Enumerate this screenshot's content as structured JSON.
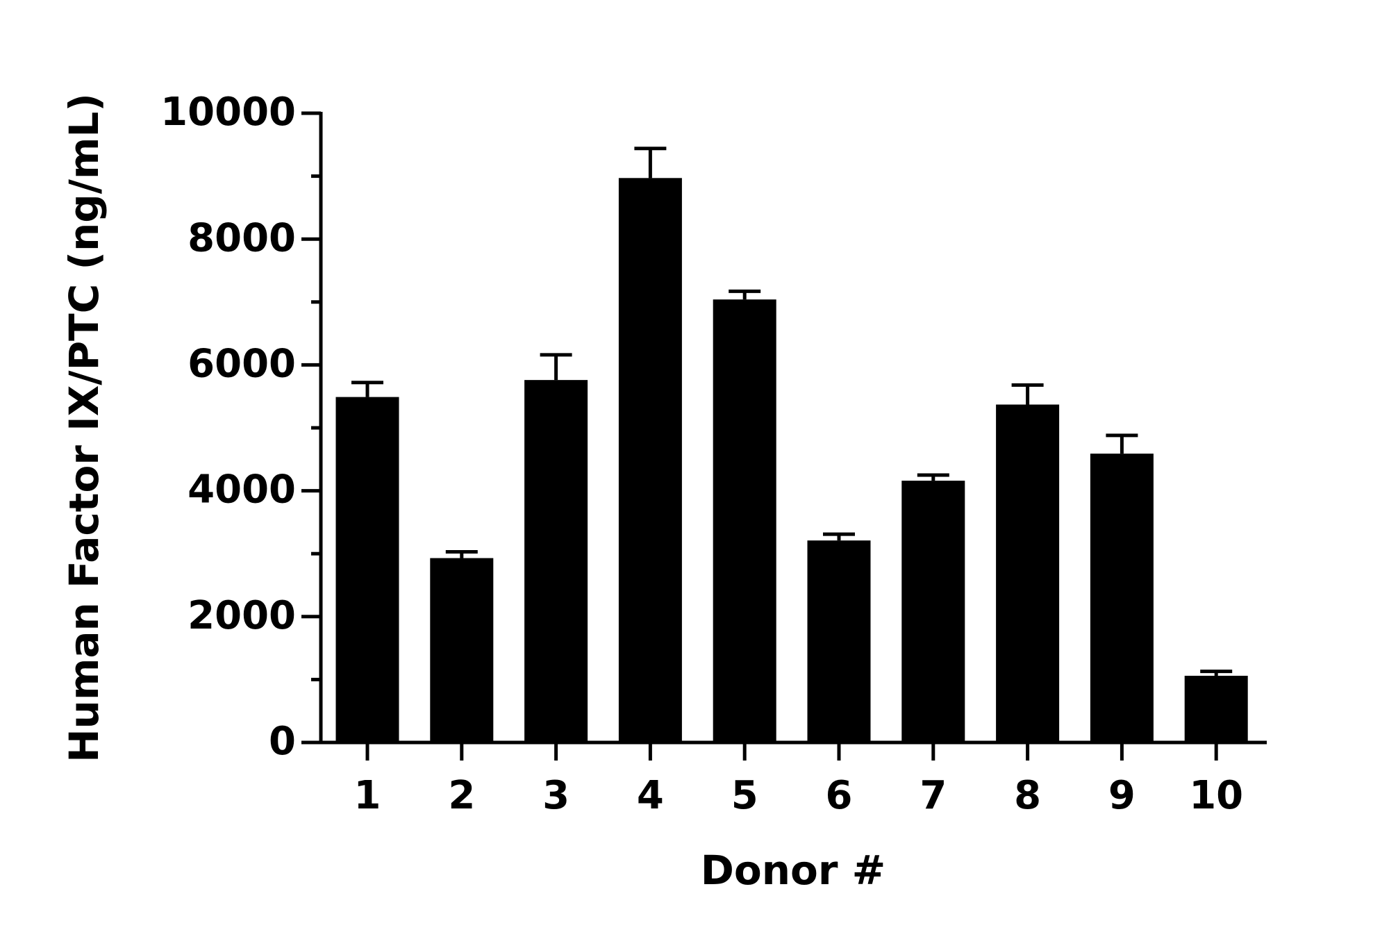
{
  "chart_data": {
    "type": "bar",
    "y_label": "Human Factor IX/PTC (ng/mL)",
    "x_label": "Donor #",
    "categories": [
      "1",
      "2",
      "3",
      "4",
      "5",
      "6",
      "7",
      "8",
      "9",
      "10"
    ],
    "values": [
      5490,
      2930,
      5760,
      8970,
      7040,
      3210,
      4160,
      5370,
      4590,
      1060
    ],
    "errors": [
      230,
      100,
      400,
      470,
      130,
      100,
      90,
      310,
      290,
      70
    ],
    "color": "#000000",
    "ylim": [
      0,
      10000
    ],
    "yticks": [
      0,
      2000,
      4000,
      6000,
      8000,
      10000
    ],
    "yminorticks": [
      1000,
      3000,
      5000,
      7000,
      9000
    ]
  }
}
